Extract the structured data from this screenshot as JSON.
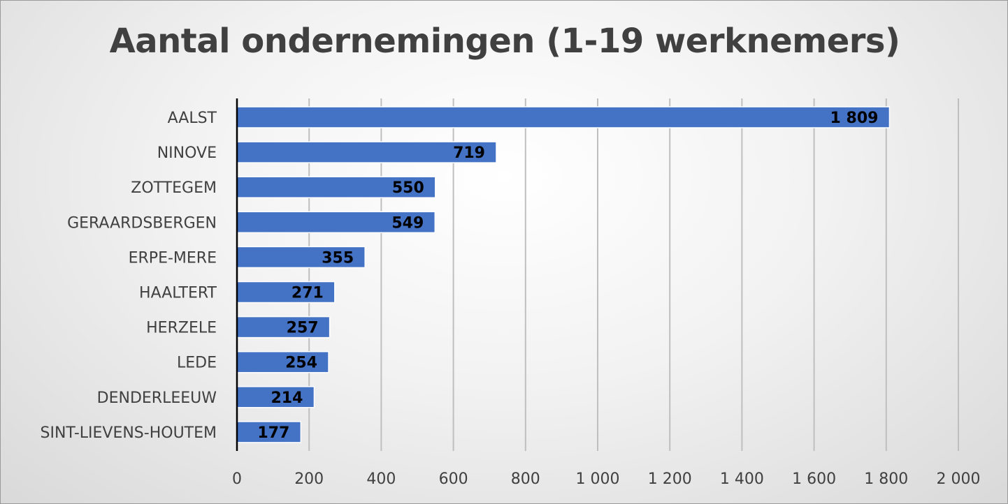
{
  "colors": {
    "bar_fill": "#4472c4",
    "bar_stroke": "#ffffff",
    "gridline": "#bfbfbf",
    "axis_line": "#000000",
    "text": "#404040"
  },
  "chart_data": {
    "type": "bar",
    "orientation": "horizontal",
    "title": "Aantal ondernemingen (1-19 werknemers)",
    "categories": [
      "AALST",
      "NINOVE",
      "ZOTTEGEM",
      "GERAARDSBERGEN",
      "ERPE-MERE",
      "HAALTERT",
      "HERZELE",
      "LEDE",
      "DENDERLEEUW",
      "SINT-LIEVENS-HOUTEM"
    ],
    "values": [
      1809,
      719,
      550,
      549,
      355,
      271,
      257,
      254,
      214,
      177
    ],
    "data_labels": [
      "1 809",
      "719",
      "550",
      "549",
      "355",
      "271",
      "257",
      "254",
      "214",
      "177"
    ],
    "xlim": [
      0,
      2000
    ],
    "x_ticks": [
      0,
      200,
      400,
      600,
      800,
      1000,
      1200,
      1400,
      1600,
      1800,
      2000
    ],
    "x_tick_labels": [
      "0",
      "200",
      "400",
      "600",
      "800",
      "1 000",
      "1 200",
      "1 400",
      "1 600",
      "1 800",
      "2 000"
    ],
    "grid": true,
    "legend": false
  }
}
